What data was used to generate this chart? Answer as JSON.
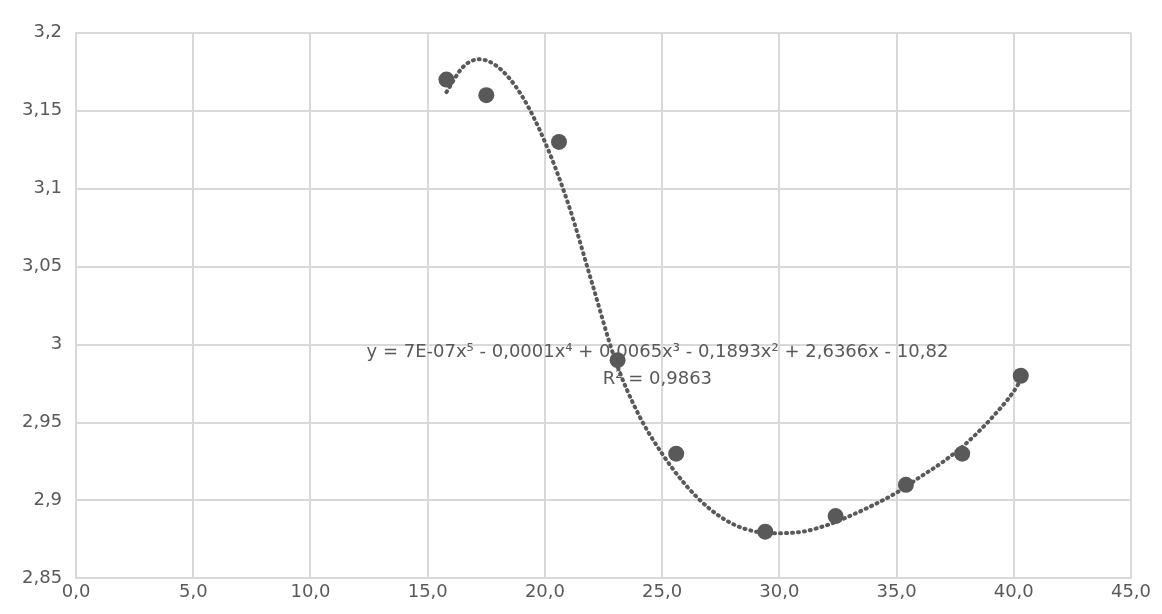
{
  "chart_data": {
    "type": "scatter",
    "xlim": [
      0,
      45
    ],
    "ylim": [
      2.85,
      3.2
    ],
    "xticks": [
      {
        "value": 0,
        "label": "0,0"
      },
      {
        "value": 5,
        "label": "5,0"
      },
      {
        "value": 10,
        "label": "10,0"
      },
      {
        "value": 15,
        "label": "15,0"
      },
      {
        "value": 20,
        "label": "20,0"
      },
      {
        "value": 25,
        "label": "25,0"
      },
      {
        "value": 30,
        "label": "30,0"
      },
      {
        "value": 35,
        "label": "35,0"
      },
      {
        "value": 40,
        "label": "40,0"
      },
      {
        "value": 45,
        "label": "45,0"
      }
    ],
    "yticks": [
      {
        "value": 2.85,
        "label": "2,85"
      },
      {
        "value": 2.9,
        "label": "2,9"
      },
      {
        "value": 2.95,
        "label": "2,95"
      },
      {
        "value": 3,
        "label": "3"
      },
      {
        "value": 3.05,
        "label": "3,05"
      },
      {
        "value": 3.1,
        "label": "3,1"
      },
      {
        "value": 3.15,
        "label": "3,15"
      },
      {
        "value": 3.2,
        "label": "3,2"
      }
    ],
    "grid": true,
    "legend": false,
    "series": [
      {
        "type": "scatter",
        "color": "#595959",
        "marker": "circle",
        "x": [
          15.8,
          17.5,
          20.6,
          23.1,
          25.6,
          29.4,
          32.4,
          35.4,
          37.8,
          40.3
        ],
        "values": [
          3.17,
          3.16,
          3.13,
          2.99,
          2.93,
          2.88,
          2.89,
          2.91,
          2.93,
          2.98
        ]
      },
      {
        "type": "line",
        "color": "#595959",
        "marker": "none",
        "line_style": "dotted",
        "x": [
          15.8,
          16.5,
          17.2,
          18,
          19,
          20,
          21,
          22,
          23,
          24,
          25,
          26,
          27,
          28,
          29,
          30,
          31,
          32,
          33,
          34,
          35,
          36,
          37,
          38,
          39,
          40,
          40.4
        ],
        "values": [
          3.162,
          3.178,
          3.183,
          3.178,
          3.16,
          3.13,
          3.09,
          3.04,
          2.99,
          2.955,
          2.93,
          2.91,
          2.895,
          2.885,
          2.88,
          2.879,
          2.88,
          2.884,
          2.89,
          2.897,
          2.905,
          2.915,
          2.925,
          2.937,
          2.952,
          2.97,
          2.98
        ]
      }
    ],
    "annotations": [
      "y = 7E-07x⁵ - 0,0001x⁴ + 0,0065x³ - 0,1893x² + 2,6366x - 10,82",
      "R² = 0,9863"
    ]
  }
}
